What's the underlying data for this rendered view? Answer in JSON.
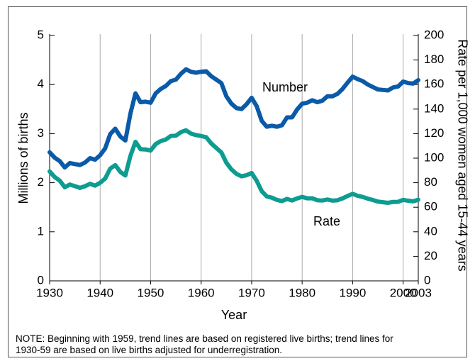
{
  "chart_data": {
    "type": "line",
    "xlabel": "Year",
    "ylabel": "Millions of births",
    "y2label": "Rate per 1,000 women aged 15-44 years",
    "annotations": [
      "Number",
      "Rate"
    ],
    "note": [
      "NOTE: Beginning with 1959, trend lines are based on registered live births; trend lines for",
      "1930-59 are based on live births adjusted for underregistration."
    ],
    "x": [
      1930,
      1931,
      1932,
      1933,
      1934,
      1935,
      1936,
      1937,
      1938,
      1939,
      1940,
      1941,
      1942,
      1943,
      1944,
      1945,
      1946,
      1947,
      1948,
      1949,
      1950,
      1951,
      1952,
      1953,
      1954,
      1955,
      1956,
      1957,
      1958,
      1959,
      1960,
      1961,
      1962,
      1963,
      1964,
      1965,
      1966,
      1967,
      1968,
      1969,
      1970,
      1971,
      1972,
      1973,
      1974,
      1975,
      1976,
      1977,
      1978,
      1979,
      1980,
      1981,
      1982,
      1983,
      1984,
      1985,
      1986,
      1987,
      1988,
      1989,
      1990,
      1991,
      1992,
      1993,
      1994,
      1995,
      1996,
      1997,
      1998,
      1999,
      2000,
      2001,
      2002,
      2003
    ],
    "series": [
      {
        "name": "Number",
        "color": "#0a5aa8",
        "axis": "y",
        "values": [
          2.62,
          2.51,
          2.44,
          2.31,
          2.4,
          2.38,
          2.36,
          2.41,
          2.5,
          2.47,
          2.56,
          2.7,
          2.99,
          3.1,
          2.94,
          2.86,
          3.41,
          3.82,
          3.64,
          3.65,
          3.63,
          3.82,
          3.91,
          3.97,
          4.07,
          4.1,
          4.22,
          4.31,
          4.26,
          4.24,
          4.26,
          4.27,
          4.17,
          4.1,
          4.03,
          3.76,
          3.61,
          3.52,
          3.5,
          3.6,
          3.73,
          3.56,
          3.26,
          3.14,
          3.16,
          3.14,
          3.17,
          3.33,
          3.33,
          3.49,
          3.61,
          3.63,
          3.68,
          3.64,
          3.67,
          3.76,
          3.76,
          3.81,
          3.91,
          4.04,
          4.16,
          4.11,
          4.07,
          4.0,
          3.95,
          3.9,
          3.89,
          3.88,
          3.94,
          3.96,
          4.06,
          4.03,
          4.02,
          4.09
        ]
      },
      {
        "name": "Rate",
        "color": "#0e9c91",
        "axis": "y2",
        "values": [
          89.2,
          84.6,
          81.7,
          76.3,
          78.5,
          77.2,
          75.8,
          77.1,
          79.1,
          77.6,
          79.9,
          83.4,
          91.5,
          94.3,
          88.8,
          85.9,
          101.9,
          113.3,
          107.3,
          107.1,
          106.2,
          111.5,
          113.9,
          115.2,
          118.1,
          118.3,
          121.2,
          122.7,
          120.0,
          118.8,
          118.0,
          117.1,
          112.0,
          108.3,
          104.7,
          96.3,
          90.8,
          87.2,
          85.2,
          86.1,
          87.9,
          81.6,
          73.1,
          68.8,
          67.8,
          66.0,
          65.0,
          66.8,
          65.5,
          67.2,
          68.4,
          67.3,
          67.3,
          65.7,
          65.5,
          66.3,
          65.4,
          65.7,
          67.2,
          69.2,
          70.9,
          69.3,
          68.4,
          67.0,
          65.9,
          64.6,
          64.1,
          63.6,
          64.3,
          64.4,
          66.0,
          65.3,
          64.8,
          66.1
        ]
      }
    ],
    "xlim": [
      1930,
      2003
    ],
    "xticks": [
      1930,
      1940,
      1950,
      1960,
      1970,
      1980,
      1990,
      2000,
      2003
    ],
    "ylim": [
      0,
      5
    ],
    "yticks": [
      0,
      1,
      2,
      3,
      4,
      5
    ],
    "y2lim": [
      0,
      200
    ],
    "y2ticks": [
      0,
      20,
      40,
      60,
      80,
      100,
      120,
      140,
      160,
      180,
      200
    ],
    "grid": true
  }
}
